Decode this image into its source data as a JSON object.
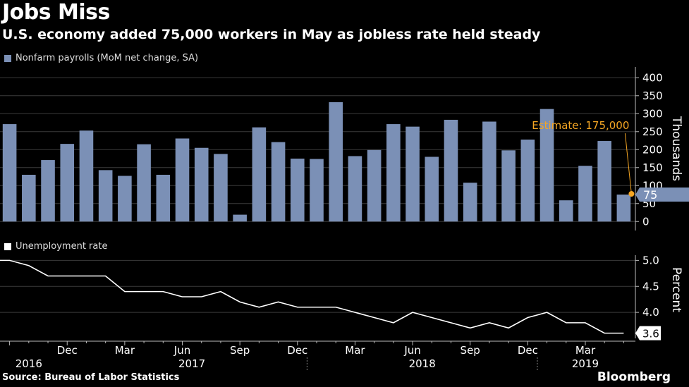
{
  "title": "Jobs Miss",
  "subtitle": "U.S. economy added 75,000 workers in May as jobless rate held steady",
  "source": "Source: Bureau of Labor Statistics",
  "brand": "Bloomberg",
  "colors": {
    "bar": "#7b90b6",
    "line": "#ffffff",
    "estimate": "#f5a623",
    "background": "#000000"
  },
  "chart_data": [
    {
      "type": "bar",
      "legend": "Nonfarm payrolls (MoM net change, SA)",
      "ylabel": "Thousands",
      "ylim": [
        -25,
        430
      ],
      "yticks": [
        "0",
        "50",
        "100",
        "150",
        "200",
        "250",
        "300",
        "350",
        "400"
      ],
      "ytick_values": [
        0,
        50,
        100,
        150,
        200,
        250,
        300,
        350,
        400
      ],
      "values": [
        271,
        130,
        171,
        216,
        253,
        143,
        127,
        215,
        130,
        231,
        205,
        188,
        19,
        262,
        221,
        175,
        174,
        332,
        182,
        199,
        271,
        264,
        180,
        283,
        108,
        278,
        198,
        228,
        313,
        59,
        155,
        224,
        75
      ],
      "last_value_label": "75",
      "annotation": {
        "text": "Estimate: 175,000",
        "value": 175
      }
    },
    {
      "type": "line",
      "legend": "Unemployment rate",
      "ylabel": "Percent",
      "ylim": [
        3.5,
        5.1
      ],
      "yticks": [
        "4.0",
        "4.5",
        "5.0"
      ],
      "ytick_values": [
        4.0,
        4.5,
        5.0
      ],
      "values": [
        5.0,
        4.9,
        4.7,
        4.7,
        4.7,
        4.7,
        4.4,
        4.4,
        4.4,
        4.3,
        4.3,
        4.4,
        4.2,
        4.1,
        4.2,
        4.1,
        4.1,
        4.1,
        4.0,
        3.9,
        3.8,
        4.0,
        3.9,
        3.8,
        3.7,
        3.8,
        3.7,
        3.9,
        4.0,
        3.8,
        3.8,
        3.6,
        3.6
      ],
      "last_value_label": "3.6"
    }
  ],
  "x_axis": {
    "month_labels": [
      {
        "label": "Dec",
        "index": 3
      },
      {
        "label": "Mar",
        "index": 6
      },
      {
        "label": "Jun",
        "index": 9
      },
      {
        "label": "Sep",
        "index": 12
      },
      {
        "label": "Dec",
        "index": 15
      },
      {
        "label": "Mar",
        "index": 18
      },
      {
        "label": "Jun",
        "index": 21
      },
      {
        "label": "Sep",
        "index": 24
      },
      {
        "label": "Dec",
        "index": 27
      },
      {
        "label": "Mar",
        "index": 30
      }
    ],
    "year_labels": [
      {
        "label": "2016",
        "index": 1
      },
      {
        "label": "2017",
        "index": 9.5
      },
      {
        "label": "2018",
        "index": 21.5
      },
      {
        "label": "2019",
        "index": 30
      }
    ],
    "year_dividers": [
      15.5,
      27.5
    ]
  }
}
